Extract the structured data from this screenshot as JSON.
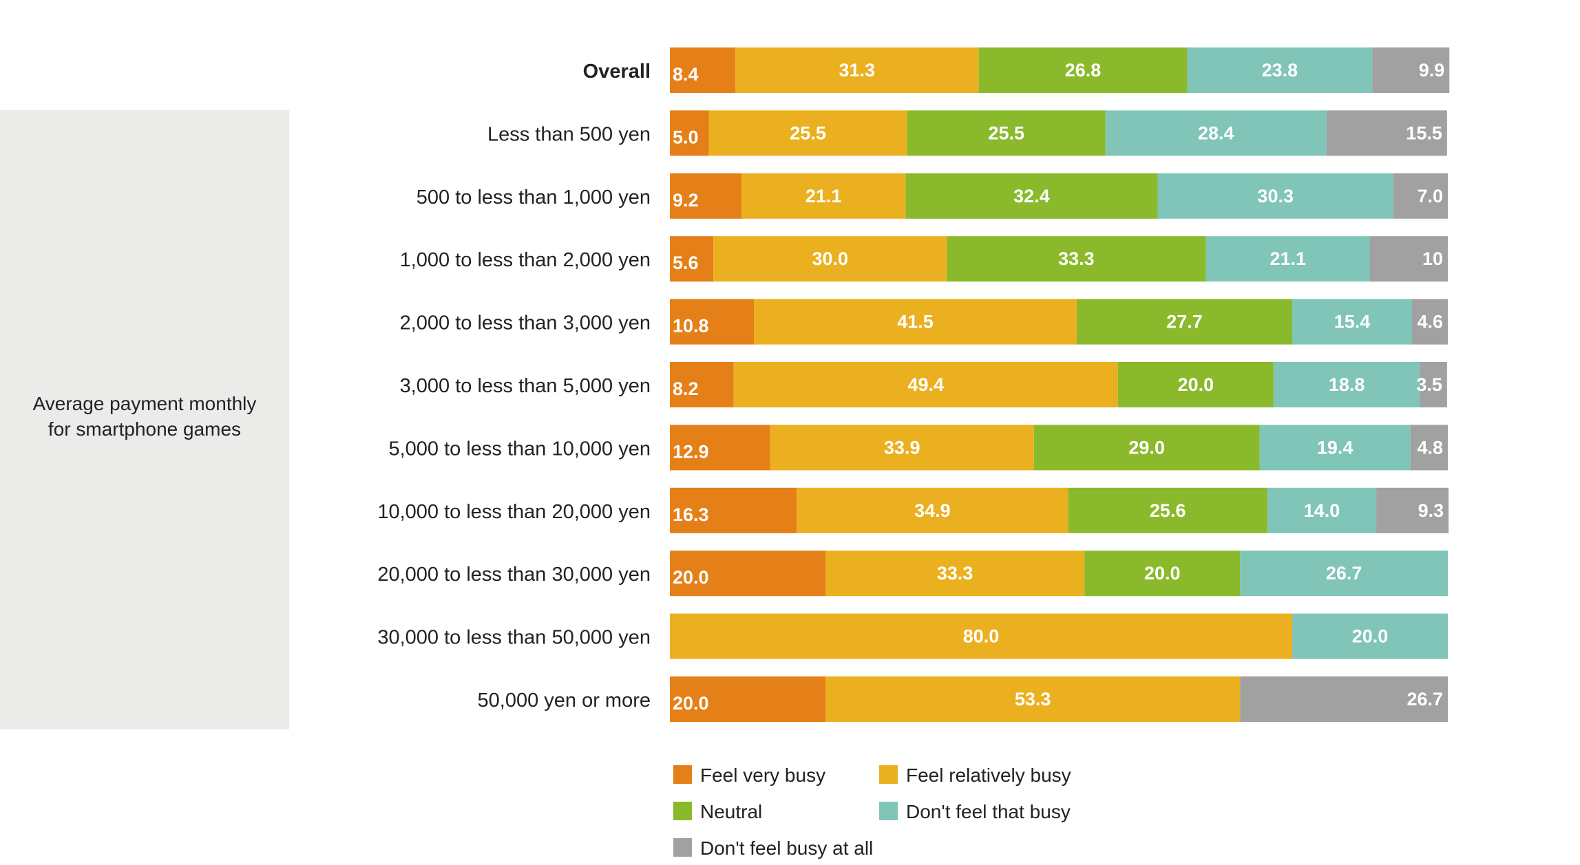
{
  "chart_data": {
    "type": "bar",
    "orientation": "horizontal",
    "stacked": true,
    "percent_stacked": true,
    "group_label": "Average payment monthly\nfor smartphone games",
    "categories": [
      "Overall",
      "Less than 500 yen",
      "500 to less than 1,000 yen",
      "1,000 to less than 2,000 yen",
      "2,000 to less than 3,000 yen",
      "3,000 to less than 5,000 yen",
      "5,000 to less than 10,000 yen",
      "10,000 to less than 20,000 yen",
      "20,000 to less than 30,000 yen",
      "30,000 to less than 50,000 yen",
      "50,000 yen or more"
    ],
    "bold_categories": [
      "Overall"
    ],
    "series": [
      {
        "name": "Feel very busy",
        "color": "#e57f18",
        "values": [
          8.4,
          5.0,
          9.2,
          5.6,
          10.8,
          8.2,
          12.9,
          16.3,
          20.0,
          null,
          20.0
        ],
        "labels": [
          "8.4",
          "5.0",
          "9.2",
          "5.6",
          "10.8",
          "8.2",
          "12.9",
          "16.3",
          "20.0",
          "",
          "20.0"
        ]
      },
      {
        "name": "Feel relatively busy",
        "color": "#ebb020",
        "values": [
          31.3,
          25.5,
          21.1,
          30.0,
          41.5,
          49.4,
          33.9,
          34.9,
          33.3,
          80.0,
          53.3
        ],
        "labels": [
          "31.3",
          "25.5",
          "21.1",
          "30.0",
          "41.5",
          "49.4",
          "33.9",
          "34.9",
          "33.3",
          "80.0",
          "53.3"
        ]
      },
      {
        "name": "Neutral",
        "color": "#8aba2b",
        "values": [
          26.8,
          25.5,
          32.4,
          33.3,
          27.7,
          20.0,
          29.0,
          25.6,
          20.0,
          null,
          null
        ],
        "labels": [
          "26.8",
          "25.5",
          "32.4",
          "33.3",
          "27.7",
          "20.0",
          "29.0",
          "25.6",
          "20.0",
          "",
          ""
        ]
      },
      {
        "name": "Don't feel that busy",
        "color": "#80c5b8",
        "values": [
          23.8,
          28.4,
          30.3,
          21.1,
          15.4,
          18.8,
          19.4,
          14.0,
          26.7,
          20.0,
          null
        ],
        "labels": [
          "23.8",
          "28.4",
          "30.3",
          "21.1",
          "15.4",
          "18.8",
          "19.4",
          "14.0",
          "26.7",
          "20.0",
          ""
        ]
      },
      {
        "name": "Don't feel busy at all",
        "color": "#a1a1a1",
        "values": [
          9.9,
          15.5,
          7.0,
          10,
          4.6,
          3.5,
          4.8,
          9.3,
          null,
          null,
          26.7
        ],
        "labels": [
          "9.9",
          "15.5",
          "7.0",
          "10",
          "4.6",
          "3.5",
          "4.8",
          "9.3",
          "",
          "",
          "26.7"
        ]
      }
    ],
    "xlim": [
      0,
      100
    ],
    "grid": false,
    "legend_position": "bottom"
  }
}
